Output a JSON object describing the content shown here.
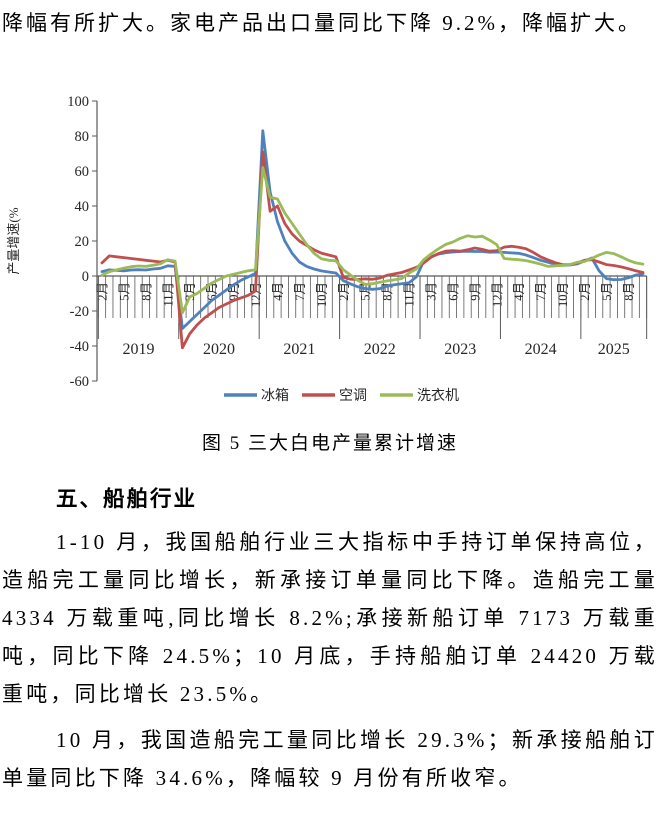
{
  "page": {
    "intro_line": "降幅有所扩大。家电产品出口量同比下降 9.2%，降幅扩大。",
    "figure_caption": "图 5 三大白电产量累计增速",
    "section_heading": "五、船舶行业",
    "paragraph_1": "1-10 月，我国船舶行业三大指标中手持订单保持高位，造船完工量同比增长，新承接订单量同比下降。造船完工量 4334 万载重吨,同比增长 8.2%;承接新船订单 7173 万载重吨，同比下降 24.5%；10 月底，手持船舶订单 24420 万载重吨，同比增长 23.5%。",
    "paragraph_2": "10 月，我国造船完工量同比增长 29.3%；新承接船舶订单量同比下降 34.6%，降幅较 9 月份有所收窄。"
  },
  "chart_data": {
    "type": "line",
    "title": "",
    "xlabel": "",
    "ylabel": "产量增速(%",
    "ylim": [
      -60,
      100
    ],
    "ytick_step": 20,
    "grid": false,
    "legend_position": "bottom",
    "x_tick_every": 3,
    "axis_color": "#595959",
    "years": [
      {
        "label": "2019",
        "months": [
          "2月",
          "3月",
          "4月",
          "5月",
          "6月",
          "7月",
          "8月",
          "9月",
          "10月",
          "11月",
          "12月"
        ]
      },
      {
        "label": "2020",
        "months": [
          "2月",
          "3月",
          "4月",
          "5月",
          "6月",
          "7月",
          "8月",
          "9月",
          "10月",
          "11月",
          "12月"
        ]
      },
      {
        "label": "2021",
        "months": [
          "2月",
          "3月",
          "4月",
          "5月",
          "6月",
          "7月",
          "8月",
          "9月",
          "10月",
          "11月",
          "12月"
        ]
      },
      {
        "label": "2022",
        "months": [
          "2月",
          "3月",
          "4月",
          "5月",
          "6月",
          "7月",
          "8月",
          "9月",
          "10月",
          "11月",
          "12月"
        ]
      },
      {
        "label": "2023",
        "months": [
          "2月",
          "3月",
          "4月",
          "5月",
          "6月",
          "7月",
          "8月",
          "9月",
          "10月",
          "11月",
          "12月"
        ]
      },
      {
        "label": "2024",
        "months": [
          "2月",
          "3月",
          "4月",
          "5月",
          "6月",
          "7月",
          "8月",
          "9月",
          "10月",
          "11月",
          "12月"
        ]
      },
      {
        "label": "2025",
        "months": [
          "2月",
          "3月",
          "4月",
          "5月",
          "6月",
          "7月",
          "8月",
          "9月",
          "10月"
        ]
      }
    ],
    "series": [
      {
        "name": "冰箱",
        "color": "#4F81BD",
        "values": [
          2.5,
          3.5,
          3.2,
          3.0,
          3.4,
          3.6,
          3.4,
          4.0,
          4.4,
          5.8,
          5.5,
          -30,
          -26,
          -22,
          -18,
          -14,
          -11,
          -8,
          -5,
          -2.5,
          -0.5,
          1.5,
          83,
          48,
          31,
          20,
          13,
          8,
          5.5,
          4,
          2.9,
          2.3,
          1.7,
          -2.7,
          -4.5,
          -6.2,
          -7.2,
          -7.6,
          -7.2,
          -5.8,
          -5.0,
          -4.4,
          -3.8,
          -0.5,
          8.4,
          11.0,
          12.5,
          13.3,
          13.7,
          14.0,
          14.2,
          14.0,
          14.0,
          13.6,
          13.7,
          13.5,
          13.2,
          13.0,
          12.0,
          10.5,
          9.0,
          7.8,
          6.8,
          6.1,
          6.3,
          6.9,
          8.6,
          10.3,
          3.0,
          -1.5,
          -2.1,
          -2.0,
          -1.0,
          0.5,
          1.2
        ]
      },
      {
        "name": "空调",
        "color": "#C0504D",
        "values": [
          7.5,
          11.5,
          11.0,
          10.5,
          10.0,
          9.5,
          9.0,
          8.5,
          8.0,
          9.0,
          8.0,
          -41,
          -33,
          -28,
          -24,
          -21,
          -18,
          -16,
          -14,
          -12.5,
          -11,
          -8.5,
          71,
          37,
          40,
          30,
          24,
          20,
          17.5,
          15,
          13.1,
          12,
          11,
          -0.8,
          -1.8,
          -2.0,
          -1.6,
          -1.9,
          -1.2,
          0.4,
          1.2,
          2.0,
          3.5,
          5.0,
          7.4,
          10.7,
          12.8,
          14.2,
          14.5,
          14.2,
          15.0,
          16.0,
          15.2,
          14.2,
          14.5,
          16.5,
          17.0,
          16.4,
          15.6,
          13.5,
          11.0,
          9.2,
          7.6,
          6.5,
          6.6,
          7.4,
          9.0,
          9.3,
          8.0,
          6.5,
          6.0,
          5.2,
          4.2,
          3.0,
          2.0
        ]
      },
      {
        "name": "洗衣机",
        "color": "#9BBB59",
        "values": [
          0.5,
          2.5,
          3.5,
          4.5,
          5.3,
          5.7,
          5.5,
          6.1,
          7.0,
          9.3,
          8.5,
          -21,
          -12,
          -10,
          -7,
          -4,
          -2,
          0,
          1,
          2,
          3,
          3.5,
          62,
          45,
          44,
          36,
          30,
          24,
          18,
          13,
          9.9,
          9,
          8.7,
          3.6,
          0.5,
          -2.5,
          -4.8,
          -4.4,
          -3.6,
          -2.8,
          -2.2,
          -1.4,
          1.7,
          4.0,
          9.3,
          12.6,
          15.5,
          18.0,
          19.4,
          21.5,
          23.0,
          22.3,
          22.7,
          20.5,
          17.9,
          10.0,
          9.6,
          9.3,
          8.8,
          7.8,
          6.8,
          5.5,
          5.8,
          6.1,
          6.5,
          7.8,
          8.3,
          10.0,
          12.0,
          13.5,
          12.8,
          11.0,
          9.0,
          7.5,
          6.8
        ]
      }
    ]
  }
}
